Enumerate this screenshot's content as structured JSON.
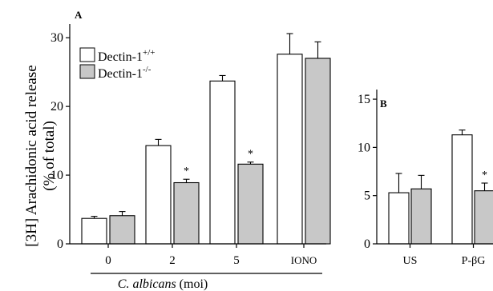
{
  "colors": {
    "wild_type": "#ffffff",
    "knockout": "#c8c8c8",
    "stroke": "#000000"
  },
  "chart_data": [
    {
      "panel": "A",
      "type": "bar",
      "ylabel": "[3H] Arachidonic acid release",
      "ylabel_line2": "(% of  total)",
      "xlabel_italic": "C. albicans",
      "xlabel_rest": " (moi)",
      "ylim": [
        0,
        32
      ],
      "yticks": [
        0,
        10,
        20,
        30
      ],
      "categories": [
        "0",
        "2",
        "5",
        "IONO"
      ],
      "series": [
        {
          "name_base": "Dectin-1",
          "name_sup": "+/+",
          "values": [
            3.7,
            14.3,
            23.7,
            27.6
          ],
          "errors": [
            0.3,
            0.9,
            0.8,
            3.0
          ],
          "significant": [
            false,
            false,
            false,
            false
          ]
        },
        {
          "name_base": "Dectin-1",
          "name_sup": "-/-",
          "values": [
            4.1,
            8.9,
            11.6,
            27.0
          ],
          "errors": [
            0.6,
            0.5,
            0.3,
            2.4
          ],
          "significant": [
            false,
            true,
            true,
            false
          ]
        }
      ],
      "significance_marker": "*",
      "legend": "top-left"
    },
    {
      "panel": "B",
      "type": "bar",
      "ylim": [
        0,
        16
      ],
      "yticks": [
        0,
        5,
        10,
        15
      ],
      "categories": [
        "US",
        "P-βG"
      ],
      "series": [
        {
          "name_base": "Dectin-1",
          "name_sup": "+/+",
          "values": [
            5.3,
            11.3
          ],
          "errors": [
            2.0,
            0.5
          ],
          "significant": [
            false,
            false
          ]
        },
        {
          "name_base": "Dectin-1",
          "name_sup": "-/-",
          "values": [
            5.7,
            5.5
          ],
          "errors": [
            1.4,
            0.8
          ],
          "significant": [
            false,
            true
          ]
        }
      ],
      "significance_marker": "*"
    }
  ]
}
